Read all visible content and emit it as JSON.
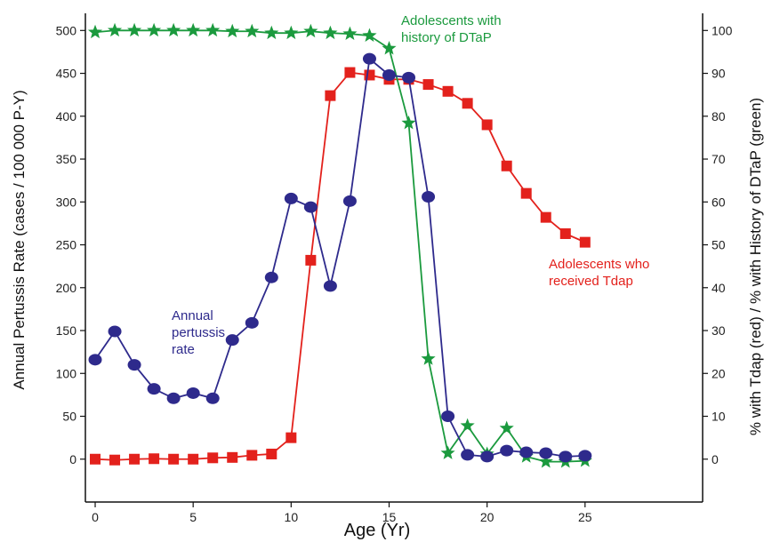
{
  "chart_data": {
    "type": "line",
    "title": "",
    "xlabel": "Age (Yr)",
    "ylabel_left": "Annual Pertussis Rate (cases / 100 000 P-Y)",
    "ylabel_right": "% with Tdap (red) / % with History of DTaP (green)",
    "xlim": [
      -0.5,
      31
    ],
    "ylim_left": [
      -50,
      520
    ],
    "ylim_right": [
      -10,
      104
    ],
    "x_ticks": [
      0,
      5,
      10,
      15,
      20,
      25
    ],
    "x_tick_labels": [
      "0",
      "5",
      "10",
      "15",
      "20",
      "25"
    ],
    "y_left_ticks": [
      0,
      50,
      100,
      150,
      200,
      250,
      300,
      350,
      400,
      450,
      500
    ],
    "y_left_tick_labels": [
      "0",
      "50",
      "100",
      "150",
      "200",
      "250",
      "300",
      "350",
      "400",
      "450",
      "500"
    ],
    "y_right_ticks": [
      0,
      10,
      20,
      30,
      40,
      50,
      60,
      70,
      80,
      90,
      100
    ],
    "y_right_tick_labels": [
      "0",
      "10",
      "20",
      "30",
      "40",
      "50",
      "60",
      "70",
      "80",
      "90",
      "100"
    ],
    "grid": false,
    "series": [
      {
        "name": "Annual pertussis rate",
        "axis": "left",
        "color": "#2e2a8c",
        "marker": "circle",
        "x": [
          0,
          1,
          2,
          3,
          4,
          5,
          6,
          7,
          8,
          9,
          10,
          11,
          12,
          13,
          14,
          15,
          16,
          17,
          18,
          19,
          20,
          21,
          22,
          23,
          24,
          25
        ],
        "y": [
          116,
          149,
          110,
          82,
          71,
          77,
          71,
          139,
          159,
          212,
          304,
          294,
          202,
          301,
          467,
          448,
          445,
          306,
          50,
          5,
          3,
          10,
          8,
          7,
          3,
          4
        ]
      },
      {
        "name": "Adolescents who received Tdap",
        "axis": "right",
        "color": "#e3211c",
        "marker": "square",
        "x": [
          0,
          1,
          2,
          3,
          4,
          5,
          6,
          7,
          8,
          9,
          10,
          11,
          12,
          13,
          14,
          15,
          16,
          17,
          18,
          19,
          20,
          21,
          22,
          23,
          24,
          25
        ],
        "y": [
          0,
          -0.2,
          0,
          0.1,
          0,
          0,
          0.3,
          0.4,
          0.9,
          1.2,
          5,
          46.4,
          84.8,
          90.2,
          89.6,
          88.6,
          88.6,
          87.4,
          85.8,
          83,
          78,
          68.4,
          62,
          56.4,
          52.6,
          50.6
        ]
      },
      {
        "name": "Adolescents with history of DTaP",
        "axis": "right",
        "color": "#1b9a3e",
        "marker": "star",
        "x": [
          0,
          1,
          2,
          3,
          4,
          5,
          6,
          7,
          8,
          9,
          10,
          11,
          12,
          13,
          14,
          15,
          16,
          17,
          18,
          19,
          20,
          21,
          22,
          23,
          24,
          25
        ],
        "y": [
          99.6,
          100,
          100,
          100,
          100,
          100,
          100,
          99.8,
          99.8,
          99.4,
          99.4,
          99.8,
          99.4,
          99.2,
          98.8,
          95.8,
          78.4,
          23.4,
          1.4,
          7.8,
          1.2,
          7.2,
          0.6,
          -0.6,
          -0.6,
          -0.4
        ]
      }
    ],
    "annotations": [
      {
        "lines": [
          "Annual",
          "pertussis",
          "rate"
        ],
        "color": "#2e2a8c"
      },
      {
        "lines": [
          "Adolescents with",
          "history of DTaP"
        ],
        "color": "#1b9a3e"
      },
      {
        "lines": [
          "Adolescents who",
          "received Tdap"
        ],
        "color": "#e3211c"
      }
    ]
  }
}
